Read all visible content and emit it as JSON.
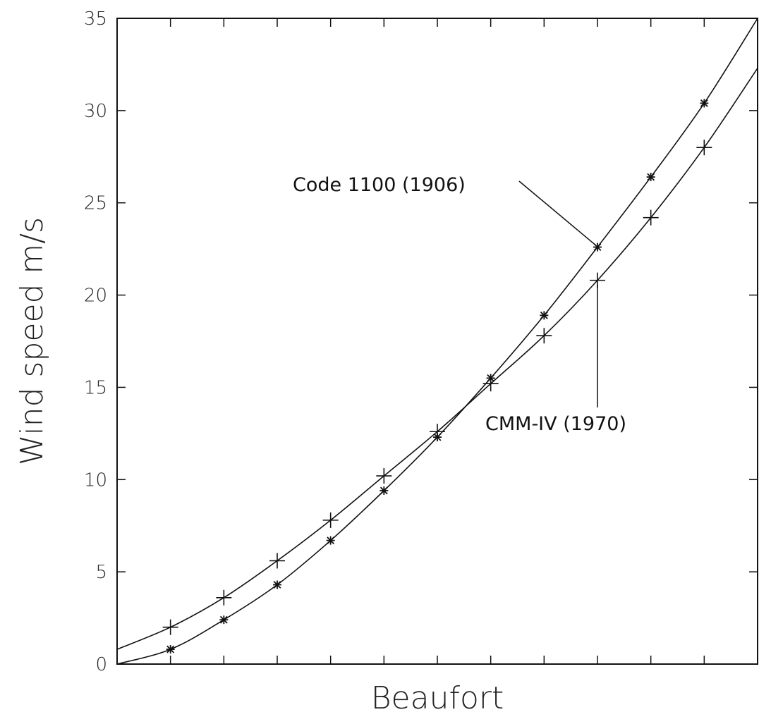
{
  "chart_data": {
    "type": "line",
    "title": "",
    "xlabel": "Beaufort",
    "ylabel": "Wind speed  m/s",
    "xlim": [
      0,
      12
    ],
    "ylim": [
      0,
      35
    ],
    "yticks": [
      0,
      5,
      10,
      15,
      20,
      25,
      30,
      35
    ],
    "ytick_labels": [
      "0",
      "5",
      "10",
      "15",
      "20",
      "25",
      "30",
      "35"
    ],
    "xticks": [
      0,
      1,
      2,
      3,
      4,
      5,
      6,
      7,
      8,
      9,
      10,
      11,
      12
    ],
    "grid": false,
    "series": [
      {
        "name": "Code 1100 (1906)",
        "marker": "asterisk",
        "curve_x": [
          0,
          1,
          2,
          3,
          4,
          5,
          6,
          7,
          8,
          9,
          10,
          11,
          12
        ],
        "curve_y": [
          0,
          0.8,
          2.4,
          4.3,
          6.7,
          9.4,
          12.3,
          15.5,
          18.9,
          22.6,
          26.4,
          30.4,
          35.0
        ],
        "marker_x": [
          1,
          2,
          3,
          4,
          5,
          6,
          7,
          8,
          9,
          10,
          11
        ],
        "marker_y": [
          0.8,
          2.4,
          4.3,
          6.7,
          9.4,
          12.3,
          15.5,
          18.9,
          22.6,
          26.4,
          30.4
        ]
      },
      {
        "name": "CMM-IV (1970)",
        "marker": "plus",
        "curve_x": [
          0,
          1,
          2,
          3,
          4,
          5,
          6,
          7,
          8,
          9,
          10,
          11,
          12
        ],
        "curve_y": [
          0.8,
          2.0,
          3.6,
          5.6,
          7.8,
          10.2,
          12.6,
          15.2,
          17.8,
          20.8,
          24.2,
          28.0,
          32.3
        ],
        "marker_x": [
          1,
          2,
          3,
          4,
          5,
          6,
          7,
          8,
          9,
          10,
          11
        ],
        "marker_y": [
          2.0,
          3.6,
          5.6,
          7.8,
          10.2,
          12.6,
          15.2,
          17.8,
          20.8,
          24.2,
          28.0
        ]
      }
    ],
    "annotations": [
      {
        "text": "Code 1100 (1906)",
        "series": 0,
        "point_x": 9,
        "point_y": 22.6
      },
      {
        "text": "CMM-IV (1970)",
        "series": 1,
        "point_x": 9,
        "point_y": 20.8
      }
    ]
  }
}
